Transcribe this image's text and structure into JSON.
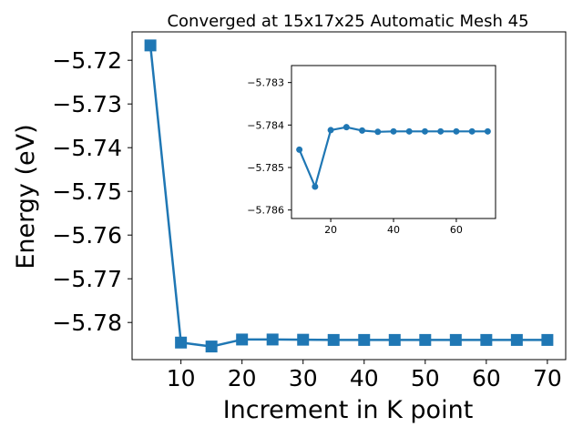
{
  "chart_data": [
    {
      "type": "line",
      "title": "Converged at 15x17x25 Automatic Mesh 45",
      "xlabel": "Increment in K point",
      "ylabel": "Energy (eV)",
      "xlim": [
        2,
        73
      ],
      "ylim": [
        -5.7885,
        -5.7135
      ],
      "xticks": [
        10,
        20,
        30,
        40,
        50,
        60,
        70
      ],
      "yticks": [
        -5.72,
        -5.73,
        -5.74,
        -5.75,
        -5.76,
        -5.77,
        -5.78
      ],
      "grid": false,
      "marker": "square",
      "color": "#1f77b4",
      "series": [
        {
          "x": [
            5,
            10,
            15,
            20,
            25,
            30,
            35,
            40,
            45,
            50,
            55,
            60,
            65,
            70
          ],
          "values": [
            -5.7166,
            -5.7846,
            -5.7855,
            -5.7839,
            -5.7839,
            -5.78395,
            -5.784,
            -5.784,
            -5.784,
            -5.784,
            -5.784,
            -5.784,
            -5.784,
            -5.784
          ]
        }
      ]
    },
    {
      "type": "line",
      "title": "",
      "xlabel": "",
      "ylabel": "",
      "xlim": [
        7.5,
        72.5
      ],
      "ylim": [
        -5.7862,
        -5.7826
      ],
      "xticks": [
        20,
        40,
        60
      ],
      "yticks": [
        -5.786,
        -5.785,
        -5.784,
        -5.783
      ],
      "grid": false,
      "marker": "circle",
      "color": "#1f77b4",
      "series": [
        {
          "x": [
            10,
            15,
            20,
            25,
            30,
            35,
            40,
            45,
            50,
            55,
            60,
            65,
            70
          ],
          "values": [
            -5.78458,
            -5.78545,
            -5.78412,
            -5.78405,
            -5.78413,
            -5.78416,
            -5.78415,
            -5.78415,
            -5.78415,
            -5.78415,
            -5.78415,
            -5.78415,
            -5.78415
          ]
        }
      ]
    }
  ]
}
